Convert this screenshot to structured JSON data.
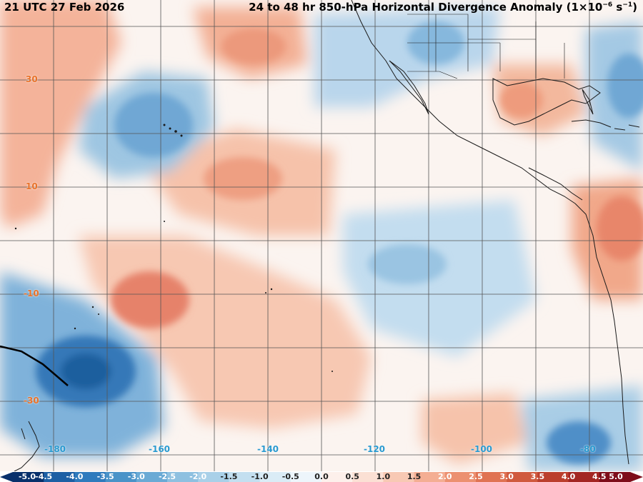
{
  "header": {
    "valid_time": "21 UTC 27 Feb 2026",
    "product_title": "24 to 48 hr 850-hPa Horizontal Divergence Anomaly",
    "units_base": "(1×10",
    "units_exp": "−6",
    "units_mid": " s",
    "units_exp2": "−1",
    "units_close": ")"
  },
  "latitude_labels": [
    "30",
    "10",
    "-10",
    "-30"
  ],
  "longitude_labels": [
    "-180",
    "-160",
    "-140",
    "-120",
    "-100",
    "-80"
  ],
  "colorbar": {
    "labels": [
      "-5.0",
      "-4.5",
      "-4.0",
      "-3.5",
      "-3.0",
      "-2.5",
      "-2.0",
      "-1.5",
      "-1.0",
      "-0.5",
      "0.0",
      "0.5",
      "1.0",
      "1.5",
      "2.0",
      "2.5",
      "3.0",
      "3.5",
      "4.0",
      "4.5",
      "5.0"
    ],
    "colors": [
      "#08306b",
      "#1d5fa4",
      "#2f7bbd",
      "#4a93c8",
      "#6aaad5",
      "#8ec0e0",
      "#a9d0e8",
      "#c3dff0",
      "#daecf6",
      "#edf5fb",
      "#fdf0eb",
      "#fbe0d4",
      "#f8c9b4",
      "#f4ae93",
      "#ec9070",
      "#e07353",
      "#d05a3e",
      "#bb3f2d",
      "#a32623",
      "#7e0d1a"
    ]
  },
  "map_style": {
    "negative_color": "#3f8fc7",
    "positive_color": "#e37050",
    "land_outline_color": "#1a1a1a",
    "grid_color": "#555555"
  }
}
